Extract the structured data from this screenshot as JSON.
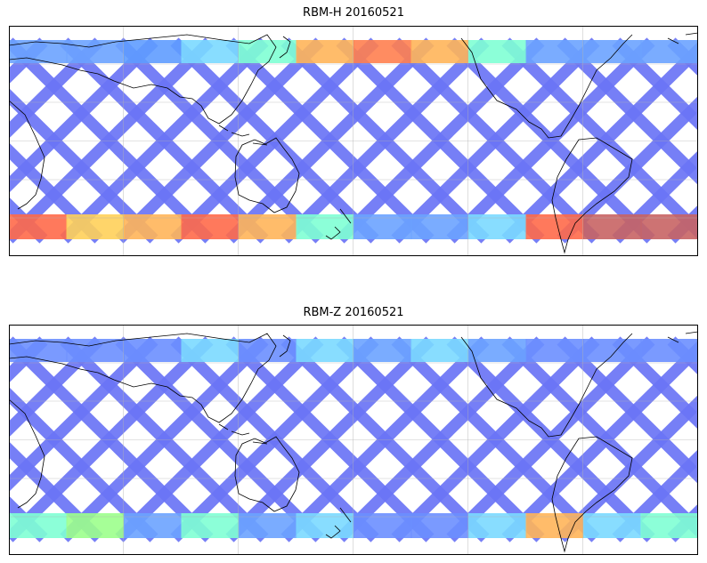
{
  "panels": [
    {
      "title": "RBM-H 20160521",
      "bands": {
        "north": [
          "#6ba3ff",
          "#6ba3ff",
          "#5f9cff",
          "#7bd9ff",
          "#7fffd4",
          "#ffb55a",
          "#ff7f50",
          "#ffb55a",
          "#7fffd4",
          "#6ba3ff",
          "#6ba3ff",
          "#6ba3ff"
        ],
        "south": [
          "#ff6a4a",
          "#ffd05a",
          "#ffb55a",
          "#ff6a4a",
          "#ffb55a",
          "#7fffd4",
          "#6ba3ff",
          "#6ba3ff",
          "#7bd9ff",
          "#ff6a4a",
          "#c86464",
          "#c86464"
        ]
      }
    },
    {
      "title": "RBM-Z 20160521",
      "bands": {
        "north": [
          "#6b8fff",
          "#6b8fff",
          "#6b8fff",
          "#7bd9ff",
          "#6b8fff",
          "#7bd9ff",
          "#6ba3ff",
          "#7bd9ff",
          "#6ba3ff",
          "#6b8fff",
          "#6b8fff",
          "#6b8fff"
        ],
        "south": [
          "#7fffd4",
          "#9cff8c",
          "#6ba3ff",
          "#7fffd4",
          "#6ba3ff",
          "#7bd9ff",
          "#6b8fff",
          "#6b8fff",
          "#7bd9ff",
          "#ffb55a",
          "#7bd9ff",
          "#7fffd4"
        ]
      }
    }
  ]
}
